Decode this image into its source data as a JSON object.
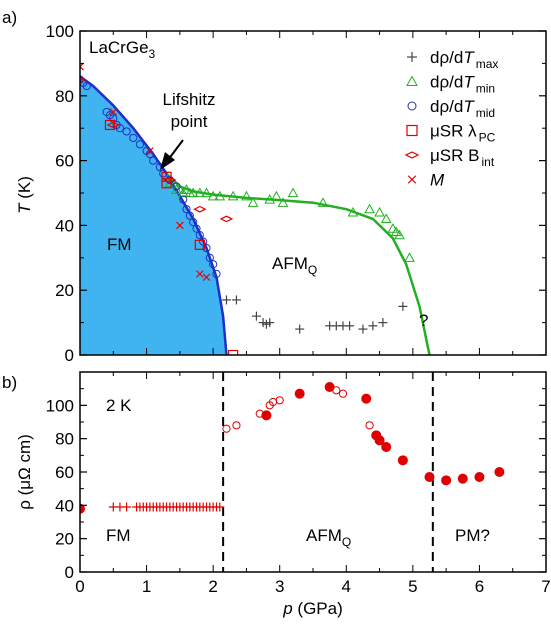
{
  "colors": {
    "fm_fill": "#3fb4f0",
    "blue": "#1f2fc8",
    "green": "#22b022",
    "red": "#e00000",
    "gray": "#444444"
  },
  "figure_label": "LaCrGe",
  "figure_label_sub": "3",
  "annotation_lifshitz": [
    "Lifshitz",
    "point"
  ],
  "panel_labels": [
    "a)",
    "b)"
  ],
  "phase_labels": {
    "fm_a": "FM",
    "afmq_a": "AFM",
    "afmq_a_sub": "Q",
    "question": "?",
    "fm_b": "FM",
    "afmq_b": "AFM",
    "afmq_b_sub": "Q",
    "pm_b": "PM?",
    "temp_b": "2 K"
  },
  "legend": [
    {
      "marker": "plus",
      "text": "dρ/d",
      "italic": "T",
      "sub": "max"
    },
    {
      "marker": "triangle",
      "text": "dρ/d",
      "italic": "T",
      "sub": "min"
    },
    {
      "marker": "circle",
      "text": "dρ/d",
      "italic": "T",
      "sub": "mid"
    },
    {
      "marker": "square",
      "text": "μSR λ",
      "italic": "",
      "sub": "PC"
    },
    {
      "marker": "diamond",
      "text": "μSR B",
      "italic": "",
      "sub": "int"
    },
    {
      "marker": "cross",
      "text": "",
      "italic": "M",
      "sub": ""
    }
  ],
  "chart_data": [
    {
      "type": "scatter",
      "panel": "a",
      "xlim": [
        0,
        7
      ],
      "ylim": [
        0,
        100
      ],
      "ylabel_italic": "T",
      "ylabel_rest": " (K)",
      "yticks": [
        "0",
        "20",
        "40",
        "60",
        "80",
        "100"
      ],
      "lines": {
        "fm_boundary": [
          [
            0,
            86
          ],
          [
            0.2,
            83
          ],
          [
            0.5,
            77
          ],
          [
            0.8,
            70
          ],
          [
            1.1,
            62
          ],
          [
            1.3,
            56
          ],
          [
            1.5,
            49
          ],
          [
            1.7,
            42
          ],
          [
            1.9,
            33
          ],
          [
            2.05,
            24
          ],
          [
            2.15,
            12
          ],
          [
            2.2,
            0
          ]
        ],
        "afmq_boundary": [
          [
            1.3,
            56
          ],
          [
            1.5,
            52
          ],
          [
            1.7,
            50.5
          ],
          [
            2.0,
            49.5
          ],
          [
            2.5,
            48.5
          ],
          [
            3.0,
            47.8
          ],
          [
            3.5,
            47
          ],
          [
            4.0,
            45
          ],
          [
            4.4,
            42
          ],
          [
            4.7,
            36
          ],
          [
            4.9,
            28
          ],
          [
            5.1,
            15
          ],
          [
            5.25,
            0
          ]
        ]
      },
      "series": [
        {
          "name": "dρ/dT max",
          "marker": "plus",
          "points": [
            [
              2.2,
              17
            ],
            [
              2.35,
              17
            ],
            [
              2.65,
              12
            ],
            [
              2.75,
              10
            ],
            [
              2.8,
              9.5
            ],
            [
              2.85,
              10
            ],
            [
              3.3,
              8
            ],
            [
              3.75,
              9
            ],
            [
              3.85,
              9
            ],
            [
              3.95,
              9
            ],
            [
              4.05,
              9
            ],
            [
              4.25,
              8
            ],
            [
              4.4,
              9
            ],
            [
              4.55,
              10
            ],
            [
              4.85,
              15
            ]
          ]
        },
        {
          "name": "dρ/dT min",
          "marker": "triangle",
          "points": [
            [
              1.35,
              53
            ],
            [
              1.45,
              51
            ],
            [
              1.5,
              51
            ],
            [
              1.55,
              50
            ],
            [
              1.6,
              51
            ],
            [
              1.65,
              50
            ],
            [
              1.7,
              50
            ],
            [
              1.8,
              50
            ],
            [
              1.9,
              50
            ],
            [
              2.0,
              49
            ],
            [
              2.1,
              49
            ],
            [
              2.3,
              49
            ],
            [
              2.5,
              49
            ],
            [
              2.6,
              47
            ],
            [
              2.85,
              48
            ],
            [
              2.95,
              49
            ],
            [
              3.05,
              47
            ],
            [
              3.2,
              50
            ],
            [
              3.65,
              47
            ],
            [
              4.1,
              44
            ],
            [
              4.35,
              45
            ],
            [
              4.5,
              44
            ],
            [
              4.6,
              42
            ],
            [
              4.7,
              39
            ],
            [
              4.75,
              38
            ],
            [
              4.8,
              37
            ],
            [
              4.95,
              30
            ]
          ]
        },
        {
          "name": "dρ/dT mid",
          "marker": "circle",
          "points": [
            [
              0.0,
              85
            ],
            [
              0.05,
              84
            ],
            [
              0.1,
              83
            ],
            [
              0.4,
              75
            ],
            [
              0.45,
              74
            ],
            [
              0.5,
              73
            ],
            [
              0.55,
              71
            ],
            [
              0.6,
              70
            ],
            [
              0.7,
              69
            ],
            [
              0.8,
              67
            ],
            [
              0.9,
              65
            ],
            [
              1.0,
              63
            ],
            [
              1.05,
              62
            ],
            [
              1.1,
              60
            ],
            [
              1.2,
              58
            ],
            [
              1.25,
              56
            ],
            [
              1.35,
              54
            ],
            [
              1.45,
              52
            ],
            [
              1.55,
              48
            ],
            [
              1.6,
              45
            ],
            [
              1.65,
              43
            ],
            [
              1.7,
              41
            ],
            [
              1.75,
              39
            ],
            [
              1.8,
              37
            ],
            [
              1.85,
              35
            ],
            [
              1.9,
              33
            ],
            [
              1.95,
              30
            ],
            [
              2.0,
              28
            ],
            [
              2.05,
              25
            ]
          ]
        },
        {
          "name": "μSR λPC",
          "marker": "square",
          "points": [
            [
              0.45,
              71
            ],
            [
              1.3,
              55
            ],
            [
              1.3,
              53
            ],
            [
              1.8,
              34
            ],
            [
              2.3,
              0
            ]
          ]
        },
        {
          "name": "μSR Bint",
          "marker": "diamond",
          "points": [
            [
              0.0,
              85
            ],
            [
              0.5,
              71
            ],
            [
              1.35,
              54
            ],
            [
              1.8,
              45
            ],
            [
              2.2,
              42
            ]
          ]
        },
        {
          "name": "M",
          "marker": "cross",
          "points": [
            [
              0.0,
              89
            ],
            [
              0.5,
              75
            ],
            [
              1.05,
              63
            ],
            [
              1.5,
              40
            ],
            [
              1.8,
              25
            ],
            [
              1.9,
              24
            ]
          ]
        }
      ]
    },
    {
      "type": "scatter",
      "panel": "b",
      "xlim": [
        0,
        7
      ],
      "ylim": [
        0,
        120
      ],
      "xticks": [
        "0",
        "1",
        "2",
        "3",
        "4",
        "5",
        "6",
        "7"
      ],
      "yticks": [
        "0",
        "20",
        "40",
        "60",
        "80",
        "100"
      ],
      "xlabel_italic": "p",
      "xlabel_rest": " (GPa)",
      "ylabel": "ρ (μΩ cm)",
      "boundaries": [
        2.15,
        5.3
      ],
      "series": [
        {
          "name": "filled",
          "marker": "filled-circle",
          "points": [
            [
              0.0,
              38
            ],
            [
              2.8,
              94
            ],
            [
              3.3,
              107
            ],
            [
              3.75,
              111
            ],
            [
              4.3,
              104
            ],
            [
              4.45,
              82
            ],
            [
              4.5,
              79
            ],
            [
              4.6,
              75
            ],
            [
              4.85,
              67
            ],
            [
              5.25,
              57
            ],
            [
              5.5,
              55
            ],
            [
              5.75,
              56
            ],
            [
              6.0,
              57
            ],
            [
              6.3,
              60
            ]
          ]
        },
        {
          "name": "open",
          "marker": "circle",
          "points": [
            [
              2.2,
              86
            ],
            [
              2.35,
              88
            ],
            [
              2.7,
              95
            ],
            [
              2.85,
              100
            ],
            [
              2.9,
              102
            ],
            [
              3.0,
              103
            ],
            [
              3.85,
              109
            ],
            [
              3.95,
              107
            ],
            [
              4.35,
              88
            ]
          ]
        },
        {
          "name": "plus",
          "marker": "plus",
          "points": [
            [
              0.0,
              38
            ],
            [
              0.5,
              39
            ],
            [
              0.6,
              39
            ],
            [
              0.7,
              39
            ],
            [
              0.85,
              39
            ],
            [
              0.9,
              39
            ],
            [
              0.95,
              39
            ],
            [
              1.0,
              39
            ],
            [
              1.05,
              39
            ],
            [
              1.1,
              39
            ],
            [
              1.15,
              39
            ],
            [
              1.2,
              39
            ],
            [
              1.25,
              39
            ],
            [
              1.3,
              39
            ],
            [
              1.35,
              39
            ],
            [
              1.4,
              39
            ],
            [
              1.45,
              39
            ],
            [
              1.5,
              39
            ],
            [
              1.55,
              39
            ],
            [
              1.6,
              39
            ],
            [
              1.65,
              39
            ],
            [
              1.7,
              39
            ],
            [
              1.75,
              39
            ],
            [
              1.8,
              39
            ],
            [
              1.85,
              39
            ],
            [
              1.9,
              39
            ],
            [
              1.95,
              39
            ],
            [
              2.0,
              39
            ],
            [
              2.05,
              39
            ],
            [
              2.1,
              39
            ]
          ]
        }
      ]
    }
  ]
}
